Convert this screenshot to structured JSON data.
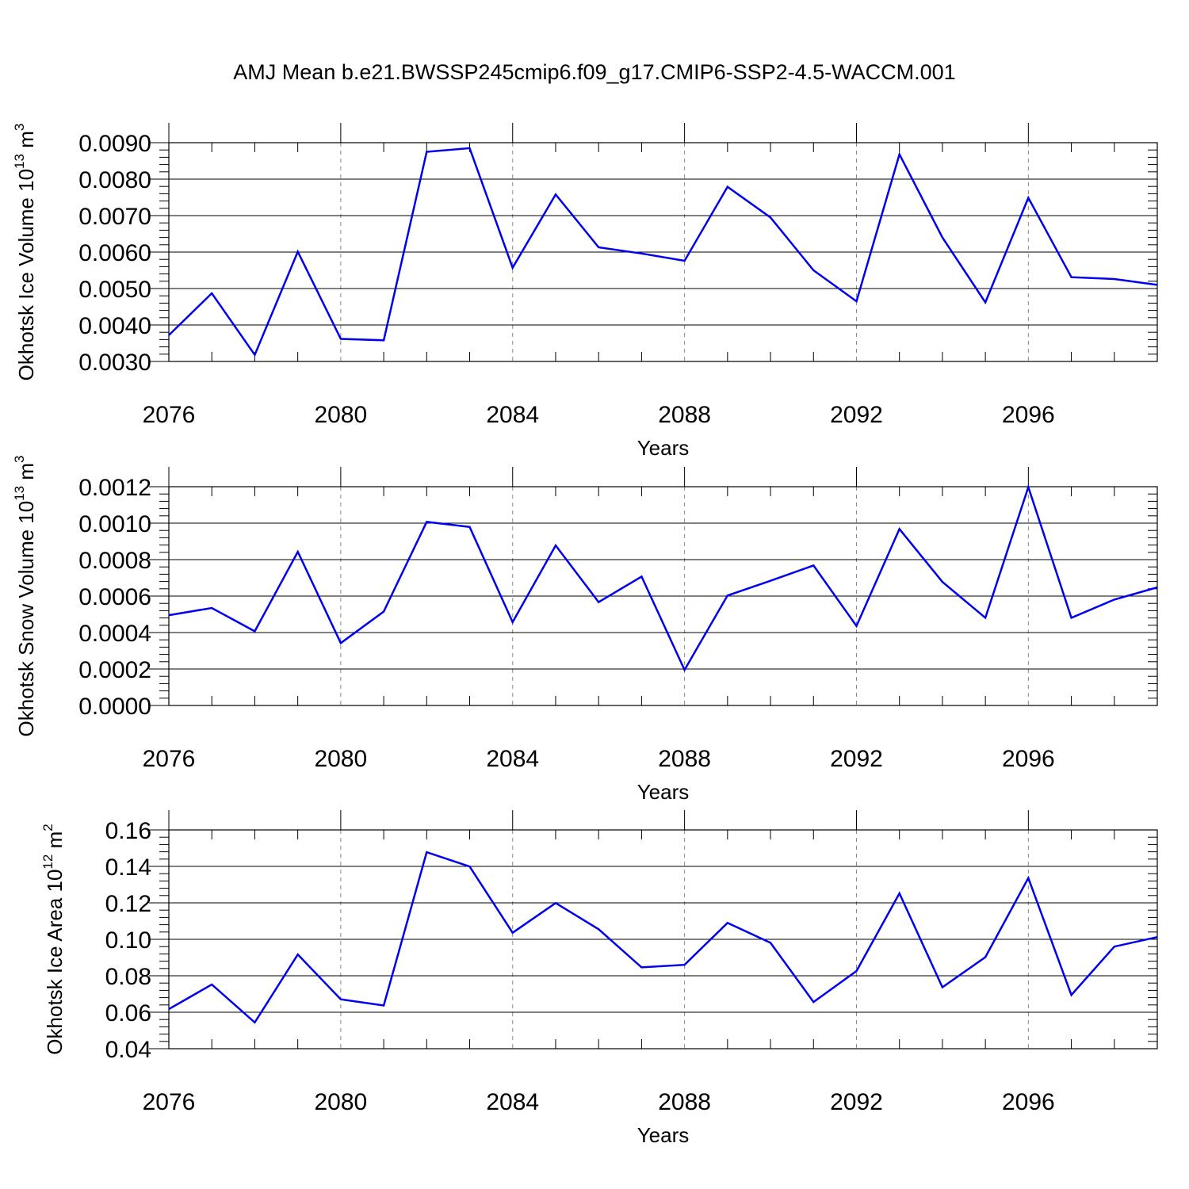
{
  "title": "AMJ Mean b.e21.BWSSP245cmip6.f09_g17.CMIP6-SSP2-4.5-WACCM.001",
  "colors": {
    "series": "#0000ee",
    "axis": "#000000",
    "grid": "#888888"
  },
  "chart_data": [
    {
      "type": "line",
      "title": "AMJ Mean b.e21.BWSSP245cmip6.f09_g17.CMIP6-SSP2-4.5-WACCM.001",
      "ylabel": "Okhotsk Ice Volume 10",
      "ylabel_exp": "13",
      "ylabel_unit": " m",
      "ylabel_unit_exp": "3",
      "xlabel": "Years",
      "xlim": [
        2076,
        2099
      ],
      "ylim": [
        0.003,
        0.009
      ],
      "xticks": [
        2076,
        2080,
        2084,
        2088,
        2092,
        2096
      ],
      "xtick_labels": [
        "2076",
        "2080",
        "2084",
        "2088",
        "2092",
        "2096"
      ],
      "yticks": [
        0.003,
        0.004,
        0.005,
        0.006,
        0.007,
        0.008,
        0.009
      ],
      "ytick_labels": [
        "0.0030",
        "0.0040",
        "0.0050",
        "0.0060",
        "0.0070",
        "0.0080",
        "0.0090"
      ],
      "x": [
        2076,
        2077,
        2078,
        2079,
        2080,
        2081,
        2082,
        2083,
        2084,
        2085,
        2086,
        2087,
        2088,
        2089,
        2090,
        2091,
        2092,
        2093,
        2094,
        2095,
        2096,
        2097,
        2098,
        2099
      ],
      "series": [
        {
          "name": "Okhotsk Ice Volume",
          "values": [
            0.00372,
            0.00487,
            0.00318,
            0.00601,
            0.00362,
            0.00358,
            0.00875,
            0.00885,
            0.00557,
            0.00758,
            0.00613,
            0.00596,
            0.00576,
            0.00779,
            0.00695,
            0.0055,
            0.00465,
            0.00868,
            0.0064,
            0.00462,
            0.00749,
            0.00531,
            0.00526,
            0.0051
          ]
        }
      ]
    },
    {
      "type": "line",
      "ylabel": "Okhotsk Snow Volume 10",
      "ylabel_exp": "13",
      "ylabel_unit": " m",
      "ylabel_unit_exp": "3",
      "xlabel": "Years",
      "xlim": [
        2076,
        2099
      ],
      "ylim": [
        0.0,
        0.0012
      ],
      "xticks": [
        2076,
        2080,
        2084,
        2088,
        2092,
        2096
      ],
      "xtick_labels": [
        "2076",
        "2080",
        "2084",
        "2088",
        "2092",
        "2096"
      ],
      "yticks": [
        0.0,
        0.0002,
        0.0004,
        0.0006,
        0.0008,
        0.001,
        0.0012
      ],
      "ytick_labels": [
        "0.0000",
        "0.0002",
        "0.0004",
        "0.0006",
        "0.0008",
        "0.0010",
        "0.0012"
      ],
      "x": [
        2076,
        2077,
        2078,
        2079,
        2080,
        2081,
        2082,
        2083,
        2084,
        2085,
        2086,
        2087,
        2088,
        2089,
        2090,
        2091,
        2092,
        2093,
        2094,
        2095,
        2096,
        2097,
        2098,
        2099
      ],
      "series": [
        {
          "name": "Okhotsk Snow Volume",
          "values": [
            0.000495,
            0.000535,
            0.000407,
            0.000843,
            0.000342,
            0.000515,
            0.001007,
            0.000979,
            0.000457,
            0.000878,
            0.000567,
            0.000707,
            0.000195,
            0.000603,
            0.000684,
            0.000768,
            0.000436,
            0.000968,
            0.000678,
            0.000481,
            0.001198,
            0.000481,
            0.000581,
            0.000648
          ]
        }
      ]
    },
    {
      "type": "line",
      "ylabel": "Okhotsk Ice Area 10",
      "ylabel_exp": "12",
      "ylabel_unit": " m",
      "ylabel_unit_exp": "2",
      "xlabel": "Years",
      "xlim": [
        2076,
        2099
      ],
      "ylim": [
        0.04,
        0.16
      ],
      "xticks": [
        2076,
        2080,
        2084,
        2088,
        2092,
        2096
      ],
      "xtick_labels": [
        "2076",
        "2080",
        "2084",
        "2088",
        "2092",
        "2096"
      ],
      "yticks": [
        0.04,
        0.06,
        0.08,
        0.1,
        0.12,
        0.14,
        0.16
      ],
      "ytick_labels": [
        "0.04",
        "0.06",
        "0.08",
        "0.10",
        "0.12",
        "0.14",
        "0.16"
      ],
      "x": [
        2076,
        2077,
        2078,
        2079,
        2080,
        2081,
        2082,
        2083,
        2084,
        2085,
        2086,
        2087,
        2088,
        2089,
        2090,
        2091,
        2092,
        2093,
        2094,
        2095,
        2096,
        2097,
        2098,
        2099
      ],
      "series": [
        {
          "name": "Okhotsk Ice Area",
          "values": [
            0.0617,
            0.0752,
            0.0544,
            0.0917,
            0.0671,
            0.0637,
            0.1478,
            0.1399,
            0.1036,
            0.1199,
            0.1055,
            0.0846,
            0.086,
            0.109,
            0.0981,
            0.0656,
            0.0826,
            0.1252,
            0.0737,
            0.0902,
            0.1336,
            0.0695,
            0.096,
            0.1012
          ]
        }
      ]
    }
  ]
}
